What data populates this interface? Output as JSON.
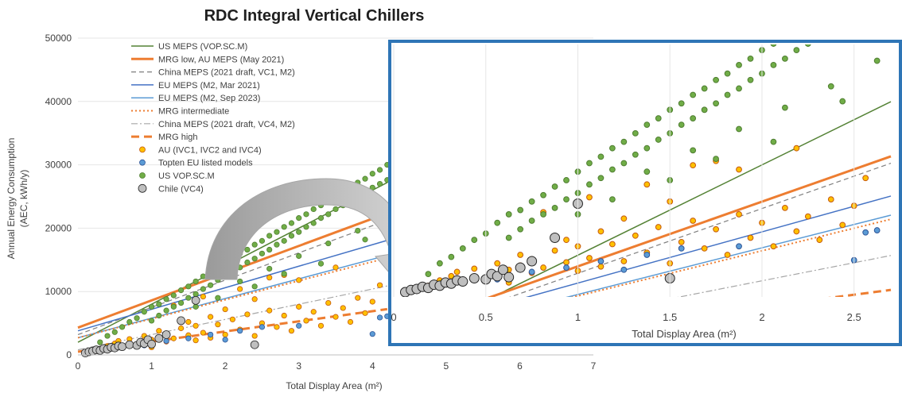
{
  "chart_data": {
    "type": "scatter",
    "title": "RDC Integral Vertical Chillers",
    "xlabel": "Total Display Area (m²)",
    "ylabel": "Annual Energy Consumption (AEC, kWh/y)",
    "xlim": [
      0,
      7
    ],
    "ylim": [
      0,
      50000
    ],
    "x_ticks": [
      "0",
      "1",
      "2",
      "3",
      "4",
      "5",
      "6",
      "7"
    ],
    "y_ticks": [
      "0",
      "10000",
      "20000",
      "30000",
      "40000",
      "50000"
    ],
    "grid": "horizontal",
    "legend_position": "top-left",
    "lines": [
      {
        "name": "US MEPS (VOP.SC.M)",
        "color": "#548235",
        "width": 1.5,
        "dash": "",
        "slope": 6000,
        "intercept": 2000
      },
      {
        "name": "MRG low, AU MEPS (May 2021)",
        "color": "#ed7d31",
        "width": 3,
        "dash": "",
        "slope": 4300,
        "intercept": 4300
      },
      {
        "name": "China MEPS (2021 draft, VC1, M2)",
        "color": "#7f7f7f",
        "width": 1.2,
        "dash": "6 4",
        "slope": 4300,
        "intercept": 3200
      },
      {
        "name": "EU MEPS (M2, Mar 2021)",
        "color": "#4472c4",
        "width": 1.5,
        "dash": "",
        "slope": 3400,
        "intercept": 3800
      },
      {
        "name": "EU MEPS (M2, Sep 2023)",
        "color": "#5b9bd5",
        "width": 1.5,
        "dash": "",
        "slope": 3100,
        "intercept": 2700
      },
      {
        "name": "MRG intermediate",
        "color": "#ed7d31",
        "width": 2,
        "dash": "2 3",
        "slope": 3000,
        "intercept": 2700
      },
      {
        "name": "China MEPS (2021 draft, VC4, M2)",
        "color": "#a6a6a6",
        "width": 1.2,
        "dash": "8 3 2 3",
        "slope": 2400,
        "intercept": 800
      },
      {
        "name": "MRG high",
        "color": "#ed7d31",
        "width": 3,
        "dash": "10 6",
        "slope": 1600,
        "intercept": 500
      }
    ],
    "series": [
      {
        "name": "AU (IVC1, IVC2 and IVC4)",
        "color": "#f4b183",
        "fill": "#ffc000",
        "stroke": "#c55a11",
        "points": [
          [
            0.2,
            600
          ],
          [
            0.3,
            900
          ],
          [
            0.4,
            1400
          ],
          [
            0.5,
            1800
          ],
          [
            0.55,
            2200
          ],
          [
            0.6,
            1200
          ],
          [
            0.7,
            2500
          ],
          [
            0.8,
            1600
          ],
          [
            0.9,
            3000
          ],
          [
            1.0,
            2400
          ],
          [
            1.0,
            1200
          ],
          [
            1.1,
            3800
          ],
          [
            1.1,
            2800
          ],
          [
            1.2,
            2100
          ],
          [
            1.2,
            3400
          ],
          [
            1.3,
            2600
          ],
          [
            1.4,
            4200
          ],
          [
            1.5,
            3100
          ],
          [
            1.5,
            5200
          ],
          [
            1.6,
            2300
          ],
          [
            1.6,
            4600
          ],
          [
            1.7,
            3500
          ],
          [
            1.8,
            6000
          ],
          [
            1.8,
            2700
          ],
          [
            1.9,
            4800
          ],
          [
            2.0,
            3200
          ],
          [
            2.0,
            7200
          ],
          [
            2.1,
            5600
          ],
          [
            2.2,
            4000
          ],
          [
            2.3,
            6400
          ],
          [
            2.4,
            3000
          ],
          [
            2.5,
            5000
          ],
          [
            2.6,
            7000
          ],
          [
            2.7,
            4400
          ],
          [
            2.8,
            6200
          ],
          [
            2.9,
            3800
          ],
          [
            3.0,
            7600
          ],
          [
            3.1,
            5400
          ],
          [
            3.2,
            6800
          ],
          [
            3.3,
            4600
          ],
          [
            3.4,
            8200
          ],
          [
            3.5,
            6000
          ],
          [
            3.6,
            7400
          ],
          [
            3.7,
            5200
          ],
          [
            3.8,
            9000
          ],
          [
            3.9,
            6600
          ],
          [
            4.0,
            8400
          ],
          [
            4.1,
            11000
          ],
          [
            1.3,
            7800
          ],
          [
            1.7,
            9200
          ],
          [
            2.2,
            10400
          ],
          [
            2.6,
            12200
          ],
          [
            3.0,
            11800
          ],
          [
            2.4,
            8800
          ],
          [
            2.8,
            12600
          ],
          [
            3.5,
            13800
          ]
        ]
      },
      {
        "name": "Topten EU listed models",
        "color": "#5b9bd5",
        "fill": "#5b9bd5",
        "stroke": "#2f5597",
        "points": [
          [
            0.9,
            1500
          ],
          [
            1.2,
            2200
          ],
          [
            1.5,
            2600
          ],
          [
            1.8,
            3200
          ],
          [
            2.0,
            2400
          ],
          [
            2.2,
            3800
          ],
          [
            2.5,
            4400
          ],
          [
            3.0,
            4600
          ],
          [
            4.0,
            3300
          ],
          [
            4.1,
            5900
          ],
          [
            4.2,
            6100
          ]
        ]
      },
      {
        "name": "US VOP.SC.M",
        "color": "#70ad47",
        "fill": "#70ad47",
        "stroke": "#507e32",
        "points": [
          [
            0.3,
            2000
          ],
          [
            0.4,
            3000
          ],
          [
            0.5,
            3600
          ],
          [
            0.6,
            4400
          ],
          [
            0.7,
            5200
          ],
          [
            0.8,
            5800
          ],
          [
            0.9,
            6800
          ],
          [
            1.0,
            7600
          ],
          [
            1.0,
            5400
          ],
          [
            1.1,
            8000
          ],
          [
            1.1,
            6200
          ],
          [
            1.2,
            8800
          ],
          [
            1.2,
            7000
          ],
          [
            1.3,
            9400
          ],
          [
            1.3,
            7600
          ],
          [
            1.4,
            10200
          ],
          [
            1.4,
            8200
          ],
          [
            1.5,
            10800
          ],
          [
            1.5,
            9000
          ],
          [
            1.6,
            11600
          ],
          [
            1.6,
            9600
          ],
          [
            1.7,
            12400
          ],
          [
            1.7,
            10400
          ],
          [
            1.8,
            13000
          ],
          [
            1.8,
            11000
          ],
          [
            1.9,
            13800
          ],
          [
            1.9,
            11800
          ],
          [
            2.0,
            14400
          ],
          [
            2.0,
            12400
          ],
          [
            2.1,
            15200
          ],
          [
            2.1,
            13200
          ],
          [
            2.2,
            16000
          ],
          [
            2.2,
            13800
          ],
          [
            2.3,
            16600
          ],
          [
            2.3,
            14600
          ],
          [
            2.4,
            17400
          ],
          [
            2.4,
            15200
          ],
          [
            2.5,
            18000
          ],
          [
            2.5,
            16000
          ],
          [
            2.6,
            18800
          ],
          [
            2.6,
            16600
          ],
          [
            2.7,
            19400
          ],
          [
            2.7,
            17400
          ],
          [
            2.8,
            20200
          ],
          [
            2.8,
            18000
          ],
          [
            2.9,
            20800
          ],
          [
            2.9,
            18800
          ],
          [
            3.0,
            21600
          ],
          [
            3.0,
            19400
          ],
          [
            3.1,
            22200
          ],
          [
            3.1,
            20200
          ],
          [
            3.2,
            23000
          ],
          [
            3.2,
            20800
          ],
          [
            3.3,
            23600
          ],
          [
            3.3,
            21600
          ],
          [
            3.4,
            24400
          ],
          [
            3.4,
            22200
          ],
          [
            3.5,
            25000
          ],
          [
            3.5,
            23000
          ],
          [
            3.6,
            25800
          ],
          [
            3.6,
            23600
          ],
          [
            3.7,
            26400
          ],
          [
            3.7,
            24400
          ],
          [
            3.8,
            27200
          ],
          [
            3.8,
            25000
          ],
          [
            3.9,
            27800
          ],
          [
            3.9,
            25800
          ],
          [
            4.0,
            28600
          ],
          [
            4.0,
            26400
          ],
          [
            4.1,
            29200
          ],
          [
            4.1,
            27000
          ],
          [
            4.2,
            30000
          ],
          [
            4.2,
            27600
          ],
          [
            2.2,
            11600
          ],
          [
            2.6,
            13600
          ],
          [
            3.0,
            15600
          ],
          [
            3.4,
            17600
          ],
          [
            3.8,
            19600
          ],
          [
            4.2,
            22000
          ],
          [
            1.6,
            7600
          ],
          [
            1.9,
            9000
          ],
          [
            2.4,
            10800
          ],
          [
            2.8,
            12800
          ],
          [
            3.3,
            14400
          ],
          [
            3.9,
            18200
          ]
        ]
      },
      {
        "name": "Chile (VC4)",
        "color": "#bfbfbf",
        "fill": "#bfbfbf",
        "stroke": "#262626",
        "points": [
          [
            0.1,
            300
          ],
          [
            0.15,
            500
          ],
          [
            0.2,
            600
          ],
          [
            0.25,
            800
          ],
          [
            0.3,
            700
          ],
          [
            0.35,
            1000
          ],
          [
            0.4,
            900
          ],
          [
            0.45,
            1200
          ],
          [
            0.5,
            1100
          ],
          [
            0.55,
            1400
          ],
          [
            0.6,
            1300
          ],
          [
            0.7,
            1600
          ],
          [
            0.8,
            1500
          ],
          [
            0.85,
            2000
          ],
          [
            0.9,
            1800
          ],
          [
            0.95,
            2400
          ],
          [
            1.0,
            1700
          ],
          [
            1.1,
            2600
          ],
          [
            1.2,
            3200
          ],
          [
            1.4,
            5400
          ],
          [
            1.6,
            8600
          ],
          [
            2.4,
            1600
          ]
        ]
      }
    ],
    "inset": {
      "xlim": [
        0,
        2.7
      ],
      "ylim": [
        10000,
        50000
      ],
      "x_ticks": [
        "0",
        "0.5",
        "1",
        "1.5",
        "2",
        "2.5"
      ],
      "xlabel": "Total Display Area (m²)"
    }
  }
}
